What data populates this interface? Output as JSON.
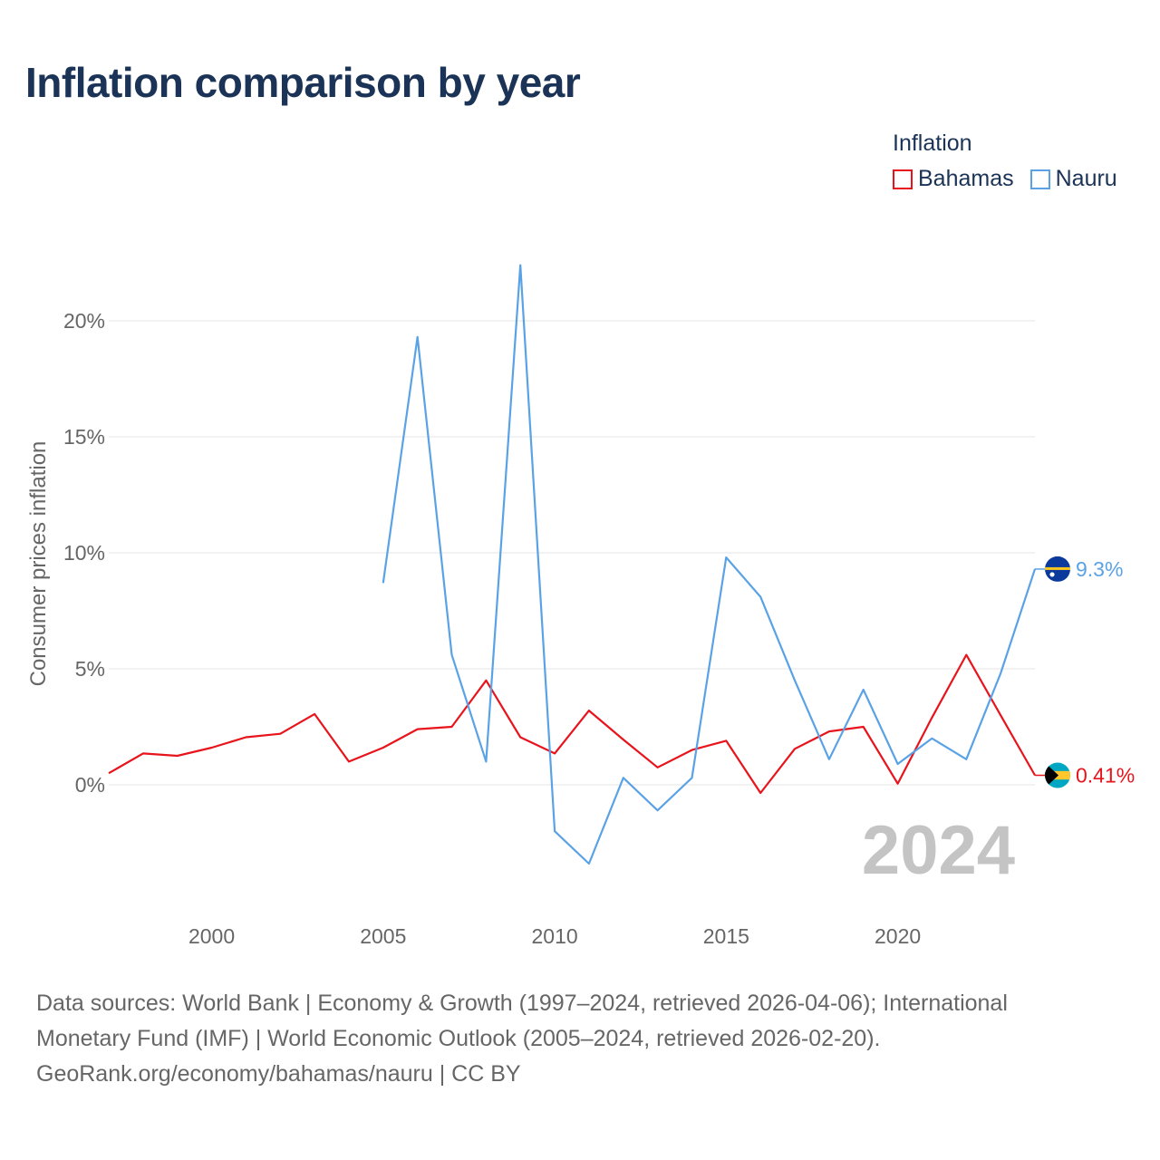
{
  "title": "Inflation comparison by year",
  "legend": {
    "title": "Inflation",
    "items": [
      {
        "name": "Bahamas",
        "color": "#e8141c"
      },
      {
        "name": "Nauru",
        "color": "#5aa2e6"
      }
    ]
  },
  "big_year": "2024",
  "footer": {
    "line1": "Data sources: World Bank | Economy & Growth (1997–2024, retrieved 2026-04-06); International",
    "line2": "Monetary Fund (IMF) | World Economic Outlook (2005–2024, retrieved 2026-02-20).",
    "line3": "GeoRank.org/economy/bahamas/nauru | CC BY"
  },
  "chart_data": {
    "type": "line",
    "title": "Inflation comparison by year",
    "ylabel": "Consumer prices inflation",
    "xlabel": "",
    "xlim": [
      1997,
      2024
    ],
    "ylim": [
      -5,
      24
    ],
    "y_ticks": [
      0,
      5,
      10,
      15,
      20
    ],
    "y_tick_labels": [
      "0%",
      "5%",
      "10%",
      "15%",
      "20%"
    ],
    "x_ticks": [
      2000,
      2005,
      2010,
      2015,
      2020
    ],
    "x_tick_labels": [
      "2000",
      "2005",
      "2010",
      "2015",
      "2020"
    ],
    "grid": true,
    "series": [
      {
        "name": "Bahamas",
        "color": "#e8141c",
        "end_label": "0.41%",
        "points": [
          [
            1997,
            0.5
          ],
          [
            1998,
            1.35
          ],
          [
            1999,
            1.25
          ],
          [
            2000,
            1.6
          ],
          [
            2001,
            2.05
          ],
          [
            2002,
            2.2
          ],
          [
            2003,
            3.05
          ],
          [
            2004,
            1.0
          ],
          [
            2005,
            1.6
          ],
          [
            2006,
            2.4
          ],
          [
            2007,
            2.5
          ],
          [
            2008,
            4.5
          ],
          [
            2009,
            2.05
          ],
          [
            2010,
            1.35
          ],
          [
            2011,
            3.2
          ],
          [
            2012,
            1.95
          ],
          [
            2013,
            0.75
          ],
          [
            2014,
            1.5
          ],
          [
            2015,
            1.9
          ],
          [
            2016,
            -0.35
          ],
          [
            2017,
            1.55
          ],
          [
            2018,
            2.3
          ],
          [
            2019,
            2.5
          ],
          [
            2020,
            0.05
          ],
          [
            2021,
            2.9
          ],
          [
            2022,
            5.6
          ],
          [
            2023,
            3.0
          ],
          [
            2024,
            0.41
          ]
        ]
      },
      {
        "name": "Nauru",
        "color": "#5aa2e6",
        "end_label": "9.3%",
        "points": [
          [
            2005,
            8.7
          ],
          [
            2006,
            19.3
          ],
          [
            2007,
            5.6
          ],
          [
            2008,
            1.0
          ],
          [
            2009,
            22.4
          ],
          [
            2010,
            -2.0
          ],
          [
            2011,
            -3.4
          ],
          [
            2012,
            0.3
          ],
          [
            2013,
            -1.1
          ],
          [
            2014,
            0.3
          ],
          [
            2015,
            9.8
          ],
          [
            2016,
            8.1
          ],
          [
            2017,
            4.5
          ],
          [
            2018,
            1.1
          ],
          [
            2019,
            4.1
          ],
          [
            2020,
            0.9
          ],
          [
            2021,
            2.0
          ],
          [
            2022,
            1.1
          ],
          [
            2023,
            4.8
          ],
          [
            2024,
            9.3
          ]
        ]
      }
    ]
  }
}
